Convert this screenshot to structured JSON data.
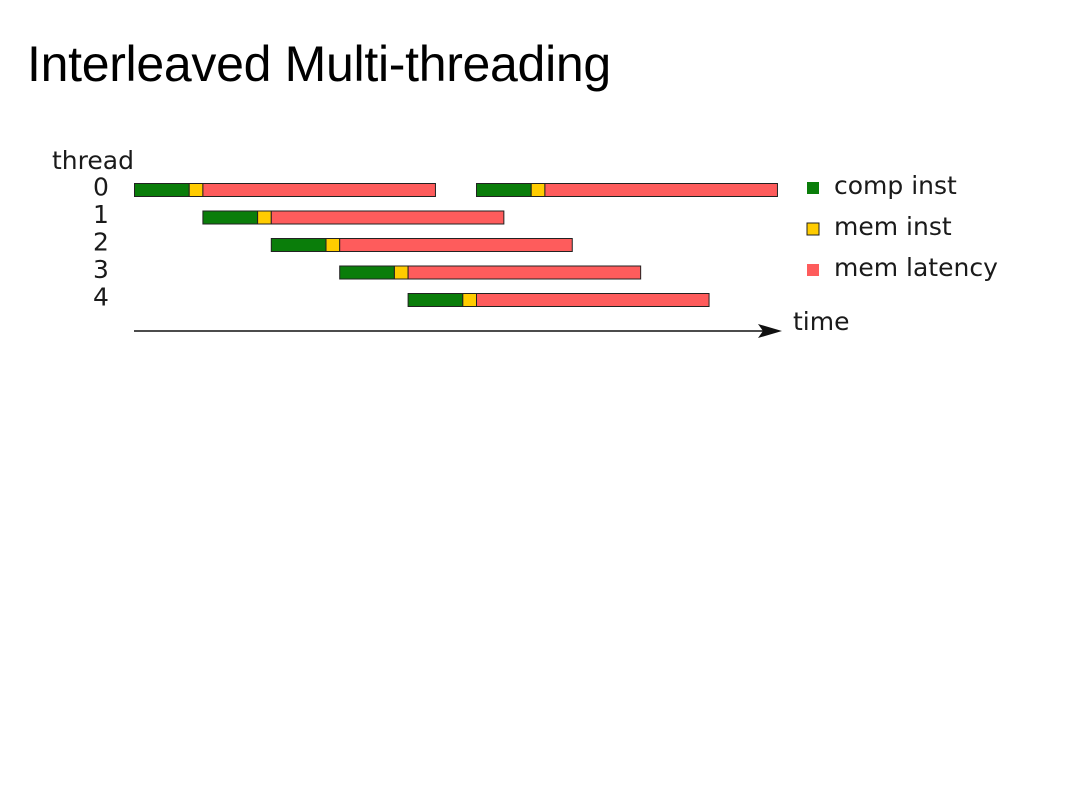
{
  "slide": {
    "title": "Interleaved Multi-threading"
  },
  "diagram": {
    "y_axis_label": "thread",
    "x_axis_label": "time",
    "threads": [
      {
        "label": "0",
        "phases": [
          {
            "kind": "comp",
            "start": 0,
            "end": 4
          },
          {
            "kind": "mem_inst",
            "start": 4,
            "end": 5
          },
          {
            "kind": "mem_latency",
            "start": 5,
            "end": 22
          },
          {
            "kind": "comp",
            "start": 25,
            "end": 29
          },
          {
            "kind": "mem_inst",
            "start": 29,
            "end": 30
          },
          {
            "kind": "mem_latency",
            "start": 30,
            "end": 47
          }
        ]
      },
      {
        "label": "1",
        "phases": [
          {
            "kind": "comp",
            "start": 5,
            "end": 9
          },
          {
            "kind": "mem_inst",
            "start": 9,
            "end": 10
          },
          {
            "kind": "mem_latency",
            "start": 10,
            "end": 27
          }
        ]
      },
      {
        "label": "2",
        "phases": [
          {
            "kind": "comp",
            "start": 10,
            "end": 14
          },
          {
            "kind": "mem_inst",
            "start": 14,
            "end": 15
          },
          {
            "kind": "mem_latency",
            "start": 15,
            "end": 32
          }
        ]
      },
      {
        "label": "3",
        "phases": [
          {
            "kind": "comp",
            "start": 15,
            "end": 19
          },
          {
            "kind": "mem_inst",
            "start": 19,
            "end": 20
          },
          {
            "kind": "mem_latency",
            "start": 20,
            "end": 37
          }
        ]
      },
      {
        "label": "4",
        "phases": [
          {
            "kind": "comp",
            "start": 20,
            "end": 24
          },
          {
            "kind": "mem_inst",
            "start": 24,
            "end": 25
          },
          {
            "kind": "mem_latency",
            "start": 25,
            "end": 42
          }
        ]
      }
    ],
    "legend": [
      {
        "kind": "comp",
        "label": "comp inst",
        "color": "#0a7d0a"
      },
      {
        "kind": "mem_inst",
        "label": "mem inst",
        "color": "#ffcc00"
      },
      {
        "kind": "mem_latency",
        "label": "mem latency",
        "color": "#fe5c5c"
      }
    ],
    "colors": {
      "bar_border": "#222222",
      "axis": "#111111"
    }
  }
}
